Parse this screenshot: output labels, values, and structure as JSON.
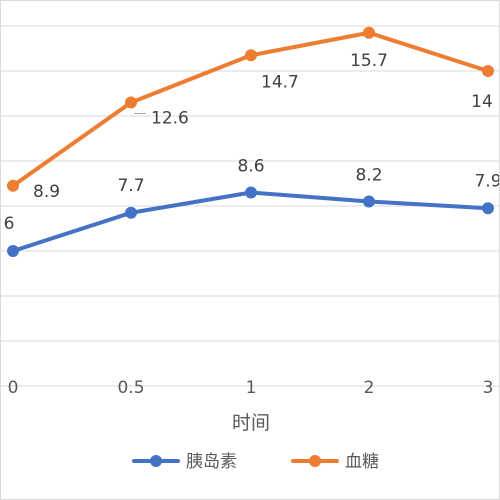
{
  "chart_data": {
    "type": "line",
    "title": "",
    "xlabel": "时间",
    "ylabel": "",
    "categories": [
      "0",
      "0.5",
      "1",
      "2",
      "3"
    ],
    "ylim": [
      0,
      18
    ],
    "grid": true,
    "legend_position": "bottom",
    "series": [
      {
        "name": "胰岛素",
        "color": "#4472c4",
        "values": [
          6,
          7.7,
          8.6,
          8.2,
          7.9
        ],
        "labels": [
          "6",
          "7.7",
          "8.6",
          "8.2",
          "7.9"
        ]
      },
      {
        "name": "血糖",
        "color": "#ed7d31",
        "values": [
          8.9,
          12.6,
          14.7,
          15.7,
          14
        ],
        "labels": [
          "8.9",
          "12.6",
          "14.7",
          "15.7",
          "14"
        ]
      }
    ]
  }
}
